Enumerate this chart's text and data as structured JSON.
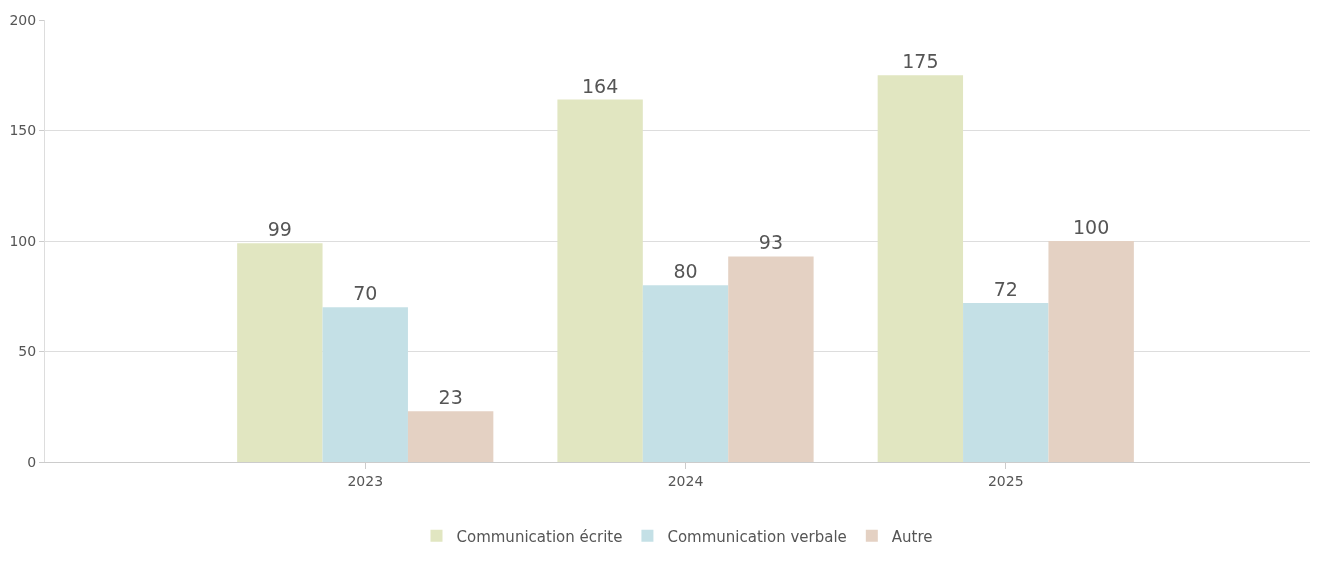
{
  "chart_data": {
    "type": "bar",
    "categories": [
      "2023",
      "2024",
      "2025"
    ],
    "series": [
      {
        "name": "Communication écrite",
        "color": "#e1e6c1",
        "values": [
          99,
          164,
          175
        ]
      },
      {
        "name": "Communication verbale",
        "color": "#c4e0e6",
        "values": [
          70,
          80,
          72
        ]
      },
      {
        "name": "Autre",
        "color": "#e4d1c3",
        "values": [
          23,
          93,
          100
        ]
      }
    ],
    "ylim": [
      0,
      200
    ],
    "yticks": [
      0,
      50,
      100,
      150,
      200
    ],
    "grid": "y",
    "legend": "bottom",
    "data_labels": true
  }
}
